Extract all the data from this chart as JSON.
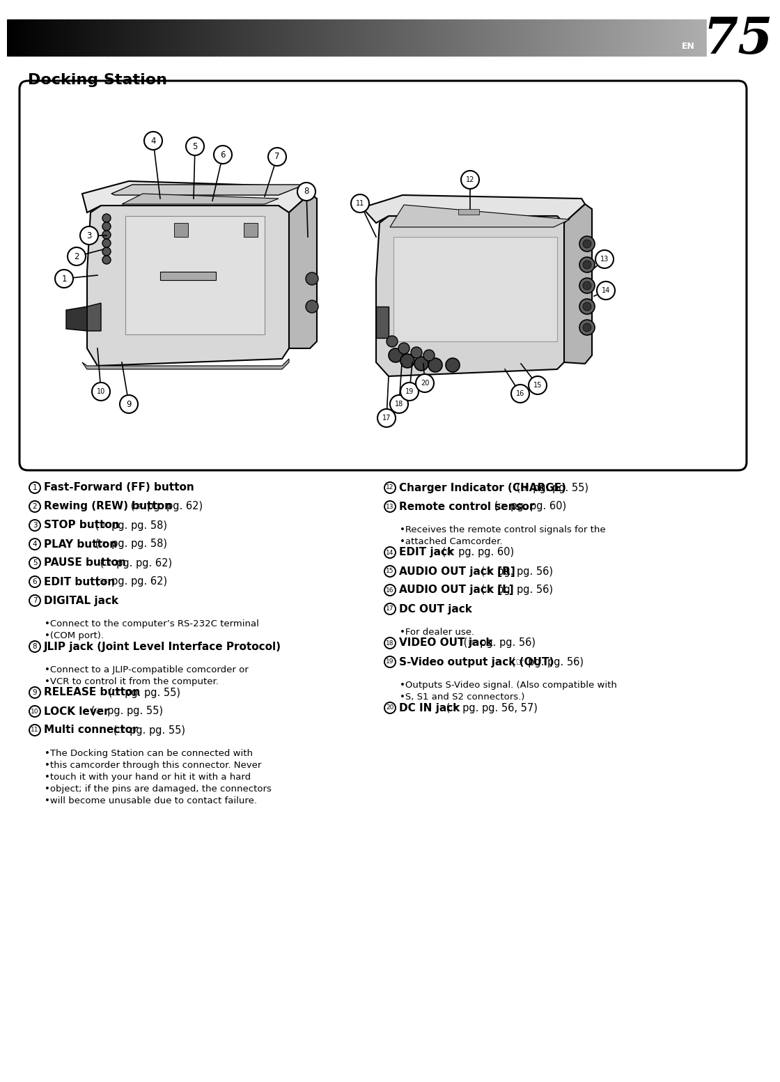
{
  "page_number": "75",
  "page_label": "EN",
  "title": "Docking Station",
  "bg_color": "#ffffff",
  "left_column": [
    {
      "num": 1,
      "bold": "Fast-Forward (FF) button",
      "ref": null,
      "sub": null
    },
    {
      "num": 2,
      "bold": "Rewing (REW) button",
      "ref": "pg. 62",
      "sub": null
    },
    {
      "num": 3,
      "bold": "STOP button",
      "ref": "pg. 58",
      "sub": null
    },
    {
      "num": 4,
      "bold": "PLAY button",
      "ref": "pg. 58",
      "sub": null
    },
    {
      "num": 5,
      "bold": "PAUSE button",
      "ref": "pg. 62",
      "sub": null
    },
    {
      "num": 6,
      "bold": "EDIT button",
      "ref": "pg. 62",
      "sub": null
    },
    {
      "num": 7,
      "bold": "DIGITAL jack",
      "ref": null,
      "sub": "Connect to the computer’s RS-232C terminal\n(COM port)."
    },
    {
      "num": 8,
      "bold": "JLIP jack (Joint Level Interface Protocol)",
      "ref": null,
      "sub": "Connect to a JLIP-compatible comcorder or\nVCR to control it from the computer."
    },
    {
      "num": 9,
      "bold": "RELEASE button",
      "ref": "pg. 55",
      "sub": null
    },
    {
      "num": 10,
      "bold": "LOCK lever",
      "ref": "pg. 55",
      "sub": null
    },
    {
      "num": 11,
      "bold": "Multi connector",
      "ref": "pg. 55",
      "sub": "The Docking Station can be connected with\nthis camcorder through this connector. Never\ntouch it with your hand or hit it with a hard\nobject; if the pins are damaged, the connectors\nwill become unusable due to contact failure."
    }
  ],
  "right_column": [
    {
      "num": 12,
      "bold": "Charger Indicator (CHARGE)",
      "ref": "pg. 55",
      "sub": null
    },
    {
      "num": 13,
      "bold": "Remote control sensor",
      "ref": "pg. 60",
      "sub": "Receives the remote control signals for the\nattached Camcorder."
    },
    {
      "num": 14,
      "bold": "EDIT jack",
      "ref": "pg. 60",
      "sub": null
    },
    {
      "num": 15,
      "bold": "AUDIO OUT jack [R]",
      "ref": "pg. 56",
      "sub": null
    },
    {
      "num": 16,
      "bold": "AUDIO OUT jack [L]",
      "ref": "pg. 56",
      "sub": null
    },
    {
      "num": 17,
      "bold": "DC OUT jack",
      "ref": null,
      "sub": "For dealer use."
    },
    {
      "num": 18,
      "bold": "VIDEO OUT jack",
      "ref": "pg. 56",
      "sub": null
    },
    {
      "num": 19,
      "bold": "S-Video output jack (OUT)",
      "ref": "pg. 56",
      "sub": "Outputs S-Video signal. (Also compatible with\nS, S1 and S2 connectors.)"
    },
    {
      "num": 20,
      "bold": "DC IN jack",
      "ref": "pg. 56, 57",
      "sub": null
    }
  ]
}
